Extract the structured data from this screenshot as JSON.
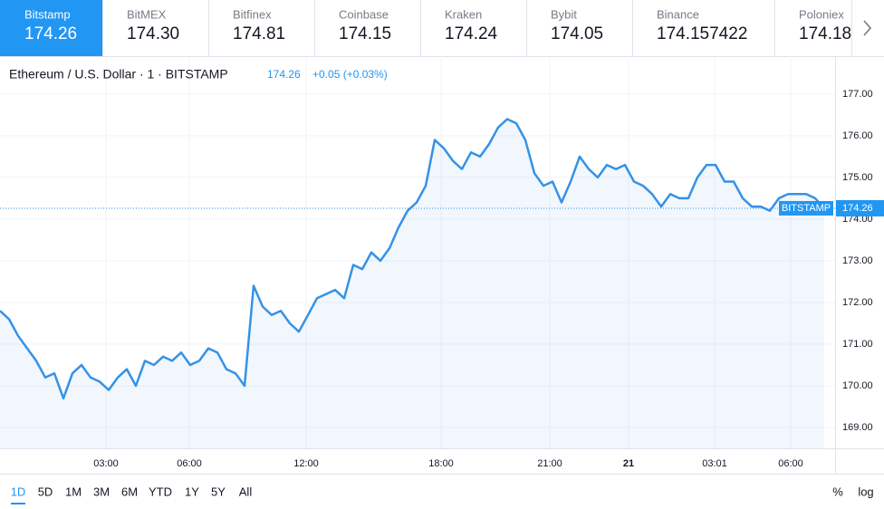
{
  "tabs": [
    {
      "name": "Bitstamp",
      "price": "174.26"
    },
    {
      "name": "BitMEX",
      "price": "174.30"
    },
    {
      "name": "Bitfinex",
      "price": "174.81"
    },
    {
      "name": "Coinbase",
      "price": "174.15"
    },
    {
      "name": "Kraken",
      "price": "174.24"
    },
    {
      "name": "Bybit",
      "price": "174.05"
    },
    {
      "name": "Binance",
      "price": "174.157422"
    },
    {
      "name": "Poloniex",
      "price": "174.18"
    }
  ],
  "chart_data": {
    "type": "line",
    "title": "Ethereum / U.S. Dollar · 1 · BITSTAMP",
    "change": "+0.05 (+0.03%)",
    "price_line_label": "BITSTAMP",
    "series": [
      {
        "name": "BITSTAMP",
        "color": "#3592e6",
        "values": [
          171.8,
          171.6,
          171.2,
          170.9,
          170.6,
          170.2,
          170.3,
          169.7,
          170.3,
          170.5,
          170.2,
          170.1,
          169.9,
          170.2,
          170.4,
          170.0,
          170.6,
          170.5,
          170.7,
          170.6,
          170.8,
          170.5,
          170.6,
          170.9,
          170.8,
          170.4,
          170.3,
          170.0,
          172.4,
          171.9,
          171.7,
          171.8,
          171.5,
          171.3,
          171.7,
          172.1,
          172.2,
          172.3,
          172.1,
          172.9,
          172.8,
          173.2,
          173.0,
          173.3,
          173.8,
          174.2,
          174.4,
          174.8,
          175.9,
          175.7,
          175.4,
          175.2,
          175.6,
          175.5,
          175.8,
          176.2,
          176.4,
          176.3,
          175.9,
          175.1,
          174.8,
          174.9,
          174.4,
          174.9,
          175.5,
          175.2,
          175.0,
          175.3,
          175.2,
          175.3,
          174.9,
          174.8,
          174.6,
          174.3,
          174.6,
          174.5,
          174.5,
          175.0,
          175.3,
          175.3,
          174.9,
          174.9,
          174.5,
          174.3,
          174.3,
          174.2,
          174.5,
          174.6,
          174.6,
          174.6,
          174.5,
          174.26
        ]
      }
    ],
    "xlim": [
      0,
      92.2
    ],
    "xticks": [
      {
        "value": 11.7,
        "label": "03:00"
      },
      {
        "value": 20.9,
        "label": "06:00"
      },
      {
        "value": 33.8,
        "label": "12:00"
      },
      {
        "value": 48.7,
        "label": "18:00"
      },
      {
        "value": 60.7,
        "label": "21:00"
      },
      {
        "value": 69.4,
        "label": "21"
      },
      {
        "value": 78.9,
        "label": "03:01"
      },
      {
        "value": 87.3,
        "label": "06:00"
      }
    ],
    "ylim": [
      168.5,
      177.91
    ],
    "yticks": [
      {
        "value": 169,
        "label": "169.00"
      },
      {
        "value": 170,
        "label": "170.00"
      },
      {
        "value": 171,
        "label": "171.00"
      },
      {
        "value": 172,
        "label": "172.00"
      },
      {
        "value": 173,
        "label": "173.00"
      },
      {
        "value": 174,
        "label": "174.00"
      },
      {
        "value": 175,
        "label": "175.00"
      },
      {
        "value": 176,
        "label": "176.00"
      },
      {
        "value": 177,
        "label": "177.00"
      }
    ],
    "grid": true
  },
  "ranges": [
    "1D",
    "5D",
    "1M",
    "3M",
    "6M",
    "YTD",
    "1Y",
    "5Y",
    "All"
  ],
  "scale_options": [
    "%",
    "log"
  ]
}
